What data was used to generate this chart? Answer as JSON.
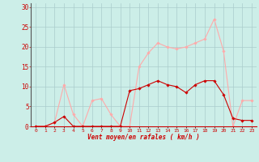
{
  "x": [
    0,
    1,
    2,
    3,
    4,
    5,
    6,
    7,
    8,
    9,
    10,
    11,
    12,
    13,
    14,
    15,
    16,
    17,
    18,
    19,
    20,
    21,
    22,
    23
  ],
  "avg_wind": [
    0,
    0,
    1,
    2.5,
    0,
    0,
    0,
    0,
    0,
    0,
    9,
    9.5,
    10.5,
    11.5,
    10.5,
    10,
    8.5,
    10.5,
    11.5,
    11.5,
    8,
    2,
    1.5,
    1.5
  ],
  "gust_wind": [
    0,
    0,
    1,
    10.5,
    3,
    0,
    6.5,
    7,
    3,
    0,
    0,
    15,
    18.5,
    21,
    20,
    19.5,
    20,
    21,
    22,
    27,
    19,
    0,
    6.5,
    6.5
  ],
  "avg_color": "#cc0000",
  "gust_color": "#ffaaaa",
  "bg_color": "#cceee8",
  "grid_color": "#aacccc",
  "xlabel": "Vent moyen/en rafales ( km/h )",
  "ylabel_ticks": [
    0,
    5,
    10,
    15,
    20,
    25,
    30
  ],
  "xlim": [
    -0.5,
    23.5
  ],
  "ylim": [
    0,
    31
  ],
  "title": ""
}
